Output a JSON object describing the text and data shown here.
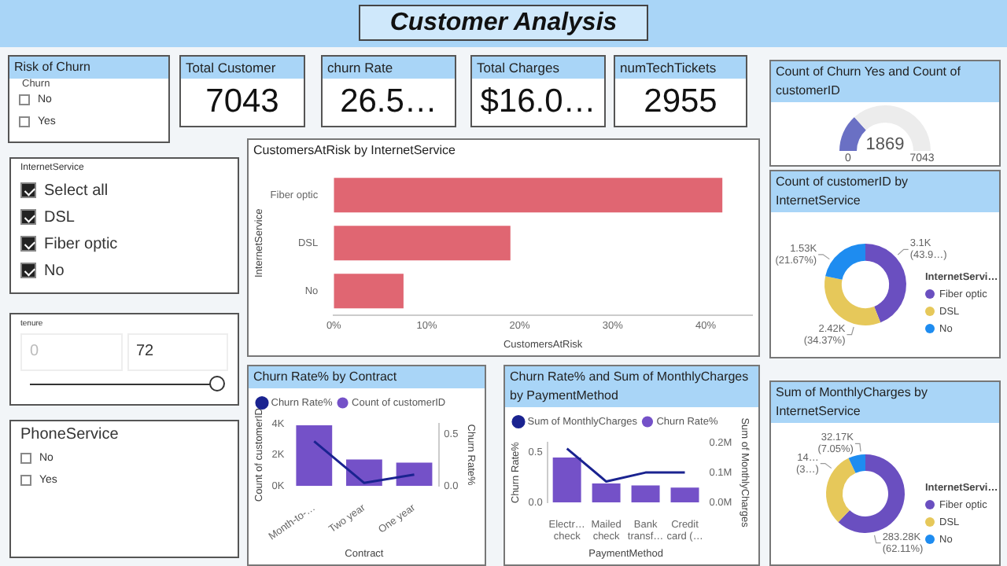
{
  "chart_data": [
    {
      "type": "other",
      "title": "Customer Analysis"
    },
    {
      "type": "other",
      "title": "Risk of Churn",
      "annotations": [
        "Churn",
        "No",
        "Yes"
      ]
    },
    {
      "type": "other",
      "title": "Total Customer",
      "annotations": [
        "7043"
      ]
    },
    {
      "type": "other",
      "title": "churn Rate",
      "annotations": [
        "26.5…"
      ]
    },
    {
      "type": "other",
      "title": "Total Charges",
      "annotations": [
        "$16.0…"
      ]
    },
    {
      "type": "other",
      "title": "numTechTickets",
      "annotations": [
        "2955"
      ]
    },
    {
      "type": "donut",
      "title": "Count of Churn Yes and Count of customerID",
      "categories": [
        null,
        null
      ],
      "values": [
        26.5,
        73.5
      ],
      "colors": [
        "#6a70c4",
        "#ececec"
      ],
      "annotations": [
        "0",
        "1869",
        "7043"
      ]
    },
    {
      "type": "other",
      "title": "InternetService",
      "annotations": [
        "Select all",
        "DSL",
        "Fiber optic",
        "No"
      ]
    },
    {
      "type": "other",
      "title": "tenure",
      "annotations": [
        "0",
        "72"
      ]
    },
    {
      "type": "other",
      "title": "PhoneService",
      "annotations": [
        "No",
        "Yes"
      ]
    },
    {
      "type": "bar",
      "title": "CustomersAtRisk by InternetService",
      "orientation": "horizontal",
      "categories": [
        "Fiber optic",
        "DSL",
        "No"
      ],
      "values": [
        41.8,
        19.0,
        7.5
      ],
      "color": "#e06672",
      "xlim": [
        0,
        45
      ],
      "xticks": [
        {
          "value": 0,
          "label": "0%"
        },
        {
          "value": 10,
          "label": "10%"
        },
        {
          "value": 20,
          "label": "20%"
        },
        {
          "value": 30,
          "label": "30%"
        },
        {
          "value": 40,
          "label": "40%"
        }
      ],
      "xlabel": "CustomersAtRisk",
      "ylabel": "InternetService"
    },
    {
      "type": "bar",
      "title": "Churn Rate% by Contract",
      "categories": [
        "Month-to-…",
        "Two year",
        "One year"
      ],
      "series": [
        {
          "name": "Count of customerID",
          "type": "bar",
          "color": "#7451c8",
          "values": [
            3900,
            1700,
            1500
          ]
        },
        {
          "name": "Churn Rate%",
          "type": "line",
          "axis": "y2",
          "color": "#1a2390",
          "values": [
            0.43,
            0.03,
            0.11
          ]
        }
      ],
      "ylim": [
        0,
        4000
      ],
      "yticks": [
        {
          "value": 0,
          "label": "0K"
        },
        {
          "value": 2000,
          "label": "2K"
        },
        {
          "value": 4000,
          "label": "4K"
        }
      ],
      "y2lim": [
        0,
        0.6
      ],
      "y2ticks": [
        {
          "value": 0,
          "label": "0.0"
        },
        {
          "value": 0.5,
          "label": "0.5"
        }
      ],
      "xlabel": "Contract",
      "ylabel": "Count of customerID",
      "y2label": "Churn Rate%",
      "legend": "top left"
    },
    {
      "type": "bar",
      "title": "Churn Rate% and Sum of MonthlyCharges by PaymentMethod",
      "categories": [
        "Electr… check",
        "Mailed check",
        "Bank transf…",
        "Credit card (…"
      ],
      "series": [
        {
          "name": "Churn Rate%",
          "type": "bar",
          "color": "#7451c8",
          "values": [
            0.45,
            0.19,
            0.17,
            0.15
          ]
        },
        {
          "name": "Sum of MonthlyCharges",
          "type": "line",
          "axis": "y2",
          "color": "#1a2390",
          "values": [
            180000,
            70000,
            100000,
            100000
          ]
        }
      ],
      "ylim": [
        0,
        0.6
      ],
      "yticks": [
        {
          "value": 0,
          "label": "0.0"
        },
        {
          "value": 0.5,
          "label": "0.5"
        }
      ],
      "y2lim": [
        0,
        200000
      ],
      "y2ticks": [
        {
          "value": 0,
          "label": "0.0M"
        },
        {
          "value": 100000,
          "label": "0.1M"
        },
        {
          "value": 200000,
          "label": "0.2M"
        }
      ],
      "xlabel": "PaymentMethod",
      "ylabel": "Churn Rate%",
      "y2label": "Sum of MonthlyCharges",
      "legend": "top left"
    },
    {
      "type": "donut",
      "title": "Count of customerID by InternetService",
      "categories": [
        "Fiber optic",
        "DSL",
        "No"
      ],
      "values": [
        3100,
        2420,
        1530
      ],
      "colors": [
        "#6a4fc0",
        "#e6c85a",
        "#1e8cf0"
      ],
      "value_labels": [
        "3.1K (43.9…)",
        "2.42K (34.37%)",
        "1.53K (21.67%)"
      ],
      "legend": "right",
      "legend_title": "InternetServi…"
    },
    {
      "type": "donut",
      "title": "Sum of MonthlyCharges by InternetService",
      "categories": [
        "Fiber optic",
        "DSL",
        "No"
      ],
      "values": [
        283280,
        140650,
        32170
      ],
      "colors": [
        "#6a4fc0",
        "#e6c85a",
        "#1e8cf0"
      ],
      "value_labels": [
        "283.28K (62.11%)",
        null,
        "32.17K (7.05%)"
      ],
      "annotations": [
        "14… (3…)"
      ],
      "legend": "right",
      "legend_title": "InternetServi…"
    }
  ]
}
